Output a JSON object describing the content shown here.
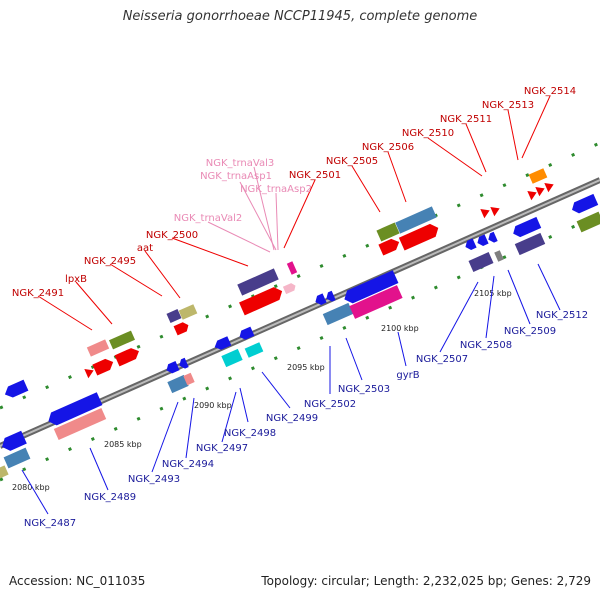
{
  "title": "Neisseria gonorrhoeae NCCP11945, complete genome",
  "footer": {
    "accession": "Accession: NC_011035",
    "summary": "Topology: circular; Length: 2,232,025 bp; Genes: 2,729"
  },
  "colors": {
    "forward_label": "#c00000",
    "reverse_label": "#1a1a9a",
    "rna_label": "#e98ab5",
    "backbone": "#888888"
  },
  "ticks": [
    "2080 kbp",
    "2085 kbp",
    "2090 kbp",
    "2095 kbp",
    "2100 kbp",
    "2105 kbp"
  ],
  "genes_forward": [
    "NGK_2491",
    "lpxB",
    "NGK_2495",
    "aat",
    "NGK_2500",
    "NGK_2501",
    "NGK_2505",
    "NGK_2506",
    "NGK_2510",
    "NGK_2511",
    "NGK_2513",
    "NGK_2514"
  ],
  "genes_rna": [
    "NGK_trnaVal2",
    "NGK_trnaAsp2",
    "NGK_trnaAsp1",
    "NGK_trnaVal3"
  ],
  "genes_reverse": [
    "NGK_2487",
    "NGK_2489",
    "NGK_2493",
    "NGK_2494",
    "NGK_2497",
    "NGK_2498",
    "NGK_2499",
    "NGK_2502",
    "NGK_2503",
    "gyrB",
    "NGK_2507",
    "NGK_2508",
    "NGK_2509",
    "NGK_2512"
  ]
}
